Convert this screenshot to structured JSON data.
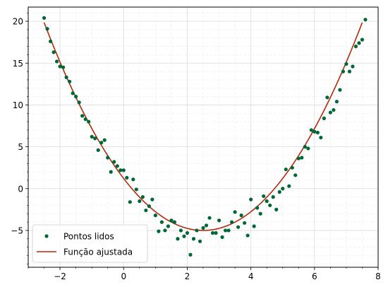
{
  "chart_data": {
    "type": "scatter",
    "xlim": [
      -3,
      8
    ],
    "ylim": [
      -9.4,
      21.7
    ],
    "x_ticks": [
      -2,
      0,
      2,
      4,
      6,
      8
    ],
    "y_ticks": [
      -5,
      0,
      5,
      10,
      15,
      20
    ],
    "grid": true,
    "legend_position": "lower-left",
    "series": [
      {
        "name": "Pontos lidos",
        "kind": "scatter",
        "color": "#006837",
        "points": [
          [
            -2.5,
            20.4
          ],
          [
            -2.4,
            19.1
          ],
          [
            -2.3,
            17.6
          ],
          [
            -2.2,
            16.3
          ],
          [
            -2.1,
            15.2
          ],
          [
            -2.0,
            14.6
          ],
          [
            -1.9,
            14.5
          ],
          [
            -1.8,
            13.3
          ],
          [
            -1.7,
            12.8
          ],
          [
            -1.6,
            11.4
          ],
          [
            -1.5,
            11.0
          ],
          [
            -1.4,
            10.3
          ],
          [
            -1.3,
            8.7
          ],
          [
            -1.2,
            8.3
          ],
          [
            -1.1,
            8.0
          ],
          [
            -1.0,
            6.2
          ],
          [
            -0.9,
            6.0
          ],
          [
            -0.8,
            4.6
          ],
          [
            -0.7,
            5.5
          ],
          [
            -0.6,
            5.8
          ],
          [
            -0.5,
            3.7
          ],
          [
            -0.4,
            2.0
          ],
          [
            -0.3,
            3.2
          ],
          [
            -0.2,
            2.7
          ],
          [
            -0.1,
            2.2
          ],
          [
            0.0,
            2.2
          ],
          [
            0.1,
            1.3
          ],
          [
            0.2,
            -1.6
          ],
          [
            0.3,
            1.1
          ],
          [
            0.4,
            -0.1
          ],
          [
            0.5,
            -1.5
          ],
          [
            0.6,
            -1.0
          ],
          [
            0.7,
            -2.6
          ],
          [
            0.8,
            -2.1
          ],
          [
            0.9,
            -1.3
          ],
          [
            1.0,
            -3.2
          ],
          [
            1.1,
            -5.1
          ],
          [
            1.2,
            -4.0
          ],
          [
            1.3,
            -5.0
          ],
          [
            1.4,
            -4.5
          ],
          [
            1.5,
            -3.8
          ],
          [
            1.6,
            -4.0
          ],
          [
            1.7,
            -6.0
          ],
          [
            1.8,
            -5.0
          ],
          [
            1.9,
            -5.7
          ],
          [
            2.0,
            -5.3
          ],
          [
            2.1,
            -7.9
          ],
          [
            2.2,
            -6.0
          ],
          [
            2.3,
            -5.0
          ],
          [
            2.4,
            -6.3
          ],
          [
            2.5,
            -4.7
          ],
          [
            2.6,
            -4.4
          ],
          [
            2.7,
            -3.5
          ],
          [
            2.8,
            -5.3
          ],
          [
            2.9,
            -5.3
          ],
          [
            3.0,
            -3.8
          ],
          [
            3.1,
            -5.8
          ],
          [
            3.2,
            -5.0
          ],
          [
            3.3,
            -5.0
          ],
          [
            3.4,
            -4.0
          ],
          [
            3.5,
            -2.8
          ],
          [
            3.6,
            -4.6
          ],
          [
            3.7,
            -3.2
          ],
          [
            3.8,
            -4.1
          ],
          [
            3.9,
            -5.6
          ],
          [
            4.0,
            -1.3
          ],
          [
            4.1,
            -4.5
          ],
          [
            4.2,
            -2.3
          ],
          [
            4.3,
            -3.0
          ],
          [
            4.4,
            -0.9
          ],
          [
            4.5,
            -1.5
          ],
          [
            4.6,
            -2.0
          ],
          [
            4.7,
            -1.0
          ],
          [
            4.8,
            -2.5
          ],
          [
            4.9,
            -0.4
          ],
          [
            5.0,
            0.0
          ],
          [
            5.1,
            2.3
          ],
          [
            5.2,
            0.3
          ],
          [
            5.3,
            2.5
          ],
          [
            5.4,
            1.6
          ],
          [
            5.5,
            3.6
          ],
          [
            5.6,
            3.7
          ],
          [
            5.7,
            5.0
          ],
          [
            5.8,
            4.8
          ],
          [
            5.9,
            7.0
          ],
          [
            6.0,
            6.8
          ],
          [
            6.1,
            6.7
          ],
          [
            6.2,
            6.1
          ],
          [
            6.3,
            8.4
          ],
          [
            6.4,
            10.9
          ],
          [
            6.5,
            9.1
          ],
          [
            6.6,
            9.4
          ],
          [
            6.7,
            10.4
          ],
          [
            6.8,
            11.8
          ],
          [
            6.9,
            14.0
          ],
          [
            7.0,
            14.9
          ],
          [
            7.1,
            14.0
          ],
          [
            7.2,
            14.6
          ],
          [
            7.3,
            17.0
          ],
          [
            7.4,
            17.4
          ],
          [
            7.5,
            17.8
          ],
          [
            7.6,
            20.2
          ]
        ]
      },
      {
        "name": "Função ajustada",
        "kind": "line",
        "color": "#b22a0a",
        "model": {
          "a": 0.994,
          "h": 2.5,
          "k": -5.0
        },
        "x_range": [
          -2.5,
          7.5
        ]
      }
    ]
  }
}
